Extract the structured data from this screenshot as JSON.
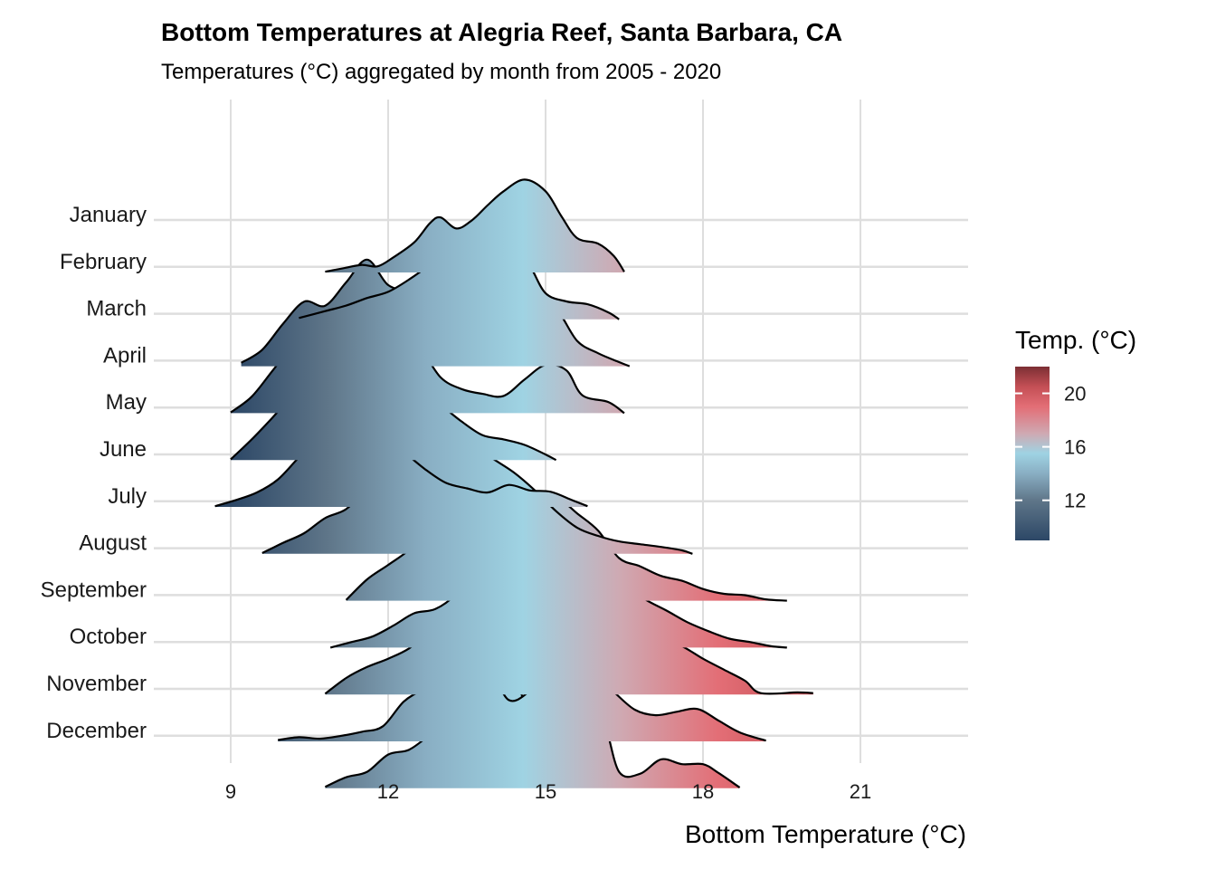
{
  "chart_data": {
    "type": "ridgeline",
    "title": "Bottom Temperatures at Alegria Reef, Santa Barbara, CA",
    "subtitle": "Temperatures (°C) aggregated by month from 2005 - 2020",
    "xlabel": "Bottom Temperature (°C)",
    "ylabel": "",
    "xlim": [
      7.5,
      23
    ],
    "x_ticks": [
      9,
      12,
      15,
      18,
      21
    ],
    "grid": true,
    "legend": {
      "title": "Temp. (°C)",
      "position": "right",
      "ticks": [
        12,
        16,
        20
      ],
      "range": [
        9,
        22
      ],
      "colors": [
        {
          "value": 9,
          "color": "#2c4766"
        },
        {
          "value": 12,
          "color": "#5f7689"
        },
        {
          "value": 14,
          "color": "#89aec3"
        },
        {
          "value": 15.5,
          "color": "#9fd3e3"
        },
        {
          "value": 17,
          "color": "#cfa9b2"
        },
        {
          "value": 19,
          "color": "#e36e76"
        },
        {
          "value": 20.5,
          "color": "#c44f55"
        },
        {
          "value": 22,
          "color": "#7c2f34"
        }
      ]
    },
    "categories": [
      "January",
      "February",
      "March",
      "April",
      "May",
      "June",
      "July",
      "August",
      "September",
      "October",
      "November",
      "December"
    ],
    "series": [
      {
        "name": "January",
        "x": [
          10.8,
          11.2,
          11.5,
          11.8,
          12.1,
          12.5,
          12.8,
          13.0,
          13.3,
          13.6,
          13.9,
          14.2,
          14.6,
          15.0,
          15.3,
          15.6,
          16.0,
          16.3,
          16.5
        ],
        "density": [
          0.01,
          0.07,
          0.11,
          0.09,
          0.22,
          0.44,
          0.72,
          0.8,
          0.64,
          0.76,
          0.98,
          1.18,
          1.35,
          1.18,
          0.82,
          0.5,
          0.42,
          0.24,
          0.01
        ]
      },
      {
        "name": "February",
        "x": [
          10.3,
          10.8,
          11.2,
          11.6,
          12.0,
          12.4,
          12.8,
          13.2,
          13.6,
          13.9,
          14.3,
          14.7,
          15.0,
          15.4,
          15.8,
          16.2,
          16.4
        ],
        "density": [
          0.02,
          0.12,
          0.2,
          0.31,
          0.4,
          0.58,
          0.8,
          1.05,
          1.3,
          1.47,
          1.2,
          0.78,
          0.38,
          0.26,
          0.22,
          0.1,
          0.0
        ]
      },
      {
        "name": "March",
        "x": [
          9.2,
          9.6,
          10.0,
          10.4,
          10.8,
          11.2,
          11.6,
          12.0,
          12.4,
          12.8,
          13.2,
          13.6,
          14.0,
          14.4,
          14.8,
          15.2,
          15.6,
          16.0,
          16.4,
          16.6
        ],
        "density": [
          0.05,
          0.24,
          0.62,
          0.94,
          0.88,
          1.22,
          1.55,
          1.18,
          1.12,
          1.22,
          0.82,
          0.97,
          0.9,
          0.82,
          0.97,
          0.84,
          0.37,
          0.19,
          0.06,
          0.0
        ]
      },
      {
        "name": "April",
        "x": [
          9.0,
          9.4,
          9.8,
          10.2,
          10.6,
          11.0,
          11.4,
          11.8,
          12.2,
          12.6,
          13.0,
          13.4,
          13.8,
          14.2,
          14.6,
          15.0,
          15.4,
          15.7,
          16.2,
          16.5
        ],
        "density": [
          0.01,
          0.24,
          0.62,
          1.0,
          1.28,
          1.27,
          1.28,
          1.53,
          1.2,
          0.96,
          0.52,
          0.35,
          0.28,
          0.25,
          0.49,
          0.7,
          0.62,
          0.26,
          0.16,
          0.0
        ]
      },
      {
        "name": "May",
        "x": [
          9.0,
          9.4,
          9.8,
          10.2,
          10.6,
          11.0,
          11.4,
          11.8,
          12.2,
          12.6,
          13.0,
          13.4,
          13.8,
          14.2,
          14.6,
          15.0,
          15.2
        ],
        "density": [
          0.01,
          0.3,
          0.62,
          0.96,
          1.27,
          1.44,
          1.36,
          1.3,
          1.18,
          1.0,
          0.8,
          0.56,
          0.36,
          0.3,
          0.22,
          0.08,
          0.0
        ]
      },
      {
        "name": "June",
        "x": [
          8.7,
          9.1,
          9.5,
          9.9,
          10.3,
          10.7,
          11.1,
          11.5,
          11.9,
          12.3,
          12.7,
          13.1,
          13.5,
          13.9,
          14.3,
          14.7,
          15.1,
          15.5,
          15.8
        ],
        "density": [
          0.01,
          0.1,
          0.21,
          0.4,
          0.72,
          1.01,
          1.2,
          1.36,
          1.04,
          0.8,
          0.55,
          0.35,
          0.27,
          0.21,
          0.32,
          0.24,
          0.22,
          0.1,
          0.01
        ]
      },
      {
        "name": "July",
        "x": [
          9.6,
          10.0,
          10.4,
          10.8,
          11.2,
          11.6,
          12.0,
          12.4,
          12.8,
          13.2,
          13.6,
          14.0,
          14.4,
          14.8,
          15.2,
          15.6,
          16.0,
          16.4,
          16.8,
          17.2,
          17.6,
          17.8
        ],
        "density": [
          0.01,
          0.16,
          0.3,
          0.52,
          0.65,
          0.95,
          1.26,
          1.5,
          1.55,
          1.62,
          1.58,
          1.38,
          1.18,
          0.92,
          0.62,
          0.38,
          0.26,
          0.18,
          0.14,
          0.1,
          0.05,
          0.0
        ]
      },
      {
        "name": "August",
        "x": [
          11.2,
          11.6,
          12.0,
          12.4,
          12.8,
          13.2,
          13.6,
          14.0,
          14.4,
          14.8,
          15.2,
          15.6,
          16.0,
          16.4,
          16.8,
          17.2,
          17.6,
          18.0,
          18.4,
          18.8,
          19.2,
          19.6
        ],
        "density": [
          0.01,
          0.31,
          0.52,
          0.74,
          1.06,
          1.38,
          1.32,
          1.63,
          1.53,
          1.51,
          1.51,
          1.27,
          1.02,
          0.62,
          0.5,
          0.36,
          0.29,
          0.17,
          0.1,
          0.08,
          0.02,
          0.0
        ]
      },
      {
        "name": "September",
        "x": [
          10.9,
          11.3,
          11.7,
          12.1,
          12.5,
          12.9,
          13.3,
          13.7,
          14.1,
          14.5,
          14.9,
          15.3,
          15.7,
          16.1,
          16.5,
          16.9,
          17.3,
          17.7,
          18.1,
          18.5,
          18.9,
          19.3,
          19.6
        ],
        "density": [
          0.0,
          0.08,
          0.16,
          0.32,
          0.5,
          0.56,
          0.78,
          1.17,
          1.24,
          1.53,
          1.62,
          1.57,
          1.46,
          1.21,
          0.93,
          0.7,
          0.54,
          0.37,
          0.24,
          0.13,
          0.08,
          0.02,
          0.0
        ]
      },
      {
        "name": "October",
        "x": [
          10.8,
          11.2,
          11.6,
          12.0,
          12.4,
          12.8,
          13.2,
          13.6,
          14.0,
          14.4,
          14.8,
          15.2,
          15.6,
          16.0,
          16.4,
          16.8,
          17.2,
          17.6,
          18.0,
          18.4,
          18.8,
          19.1,
          19.8,
          20.1
        ],
        "density": [
          0.01,
          0.24,
          0.4,
          0.52,
          0.67,
          0.92,
          0.96,
          1.13,
          1.02,
          1.37,
          1.57,
          1.22,
          1.38,
          1.38,
          0.92,
          0.9,
          0.8,
          0.7,
          0.52,
          0.36,
          0.2,
          0.02,
          0.03,
          0.02
        ]
      },
      {
        "name": "November",
        "x": [
          9.9,
          10.3,
          10.7,
          11.1,
          11.5,
          11.9,
          12.3,
          12.7,
          13.1,
          13.5,
          13.9,
          14.3,
          14.7,
          15.1,
          15.5,
          15.9,
          16.3,
          16.7,
          17.1,
          17.5,
          17.9,
          18.3,
          18.7,
          19.2
        ],
        "density": [
          0.02,
          0.06,
          0.04,
          0.08,
          0.14,
          0.22,
          0.58,
          0.76,
          0.88,
          0.76,
          1.05,
          0.6,
          0.73,
          1.01,
          1.12,
          1.0,
          0.72,
          0.46,
          0.38,
          0.43,
          0.47,
          0.3,
          0.13,
          0.01
        ]
      },
      {
        "name": "December",
        "x": [
          10.8,
          11.2,
          11.6,
          12.0,
          12.4,
          12.8,
          13.2,
          13.6,
          13.9,
          14.1,
          14.3,
          14.6,
          15.0,
          15.4,
          15.8,
          16.1,
          16.4,
          16.8,
          17.2,
          17.6,
          18.0,
          18.3,
          18.7
        ],
        "density": [
          0.02,
          0.16,
          0.24,
          0.49,
          0.56,
          0.78,
          1.0,
          1.16,
          2.15,
          2.4,
          2.1,
          1.26,
          1.15,
          1.05,
          0.89,
          0.98,
          0.24,
          0.21,
          0.42,
          0.35,
          0.35,
          0.22,
          0.01
        ]
      }
    ]
  }
}
